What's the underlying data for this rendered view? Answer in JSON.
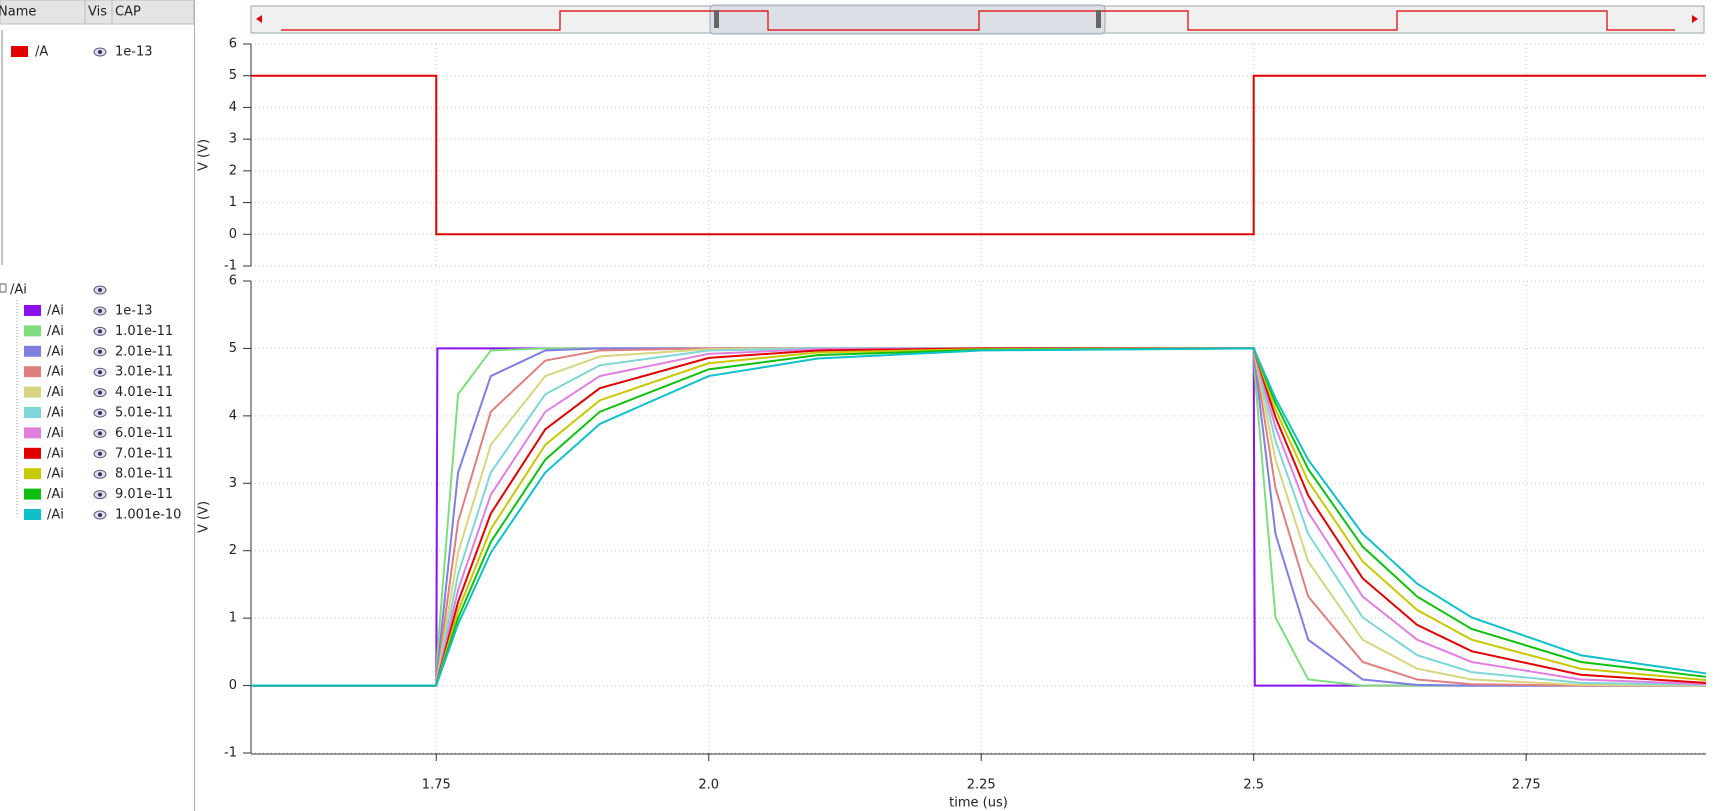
{
  "legend_panel": {
    "headers": [
      "Name",
      "Vis",
      "CAP"
    ]
  },
  "chart_data": [
    {
      "type": "line",
      "ylabel": "V (V)",
      "xlim": [
        1.58,
        2.915
      ],
      "ylim": [
        -1,
        6
      ],
      "yticks": [
        -1,
        0,
        1,
        2,
        3,
        4,
        5,
        6
      ],
      "grid": true,
      "x": [
        1.58,
        1.75,
        1.75,
        2.5,
        2.5,
        2.915
      ],
      "series": [
        {
          "name": "/A",
          "cap": "1e-13",
          "color": "#e00000",
          "values": [
            5,
            5,
            0,
            0,
            5,
            5
          ]
        }
      ]
    },
    {
      "type": "line",
      "group": "/Ai",
      "ylabel": "V (V)",
      "xlabel": "time (us)",
      "xlim": [
        1.58,
        2.915
      ],
      "ylim": [
        -1,
        6
      ],
      "yticks": [
        -1,
        0,
        1,
        2,
        3,
        4,
        5,
        6
      ],
      "grid": true,
      "xticks": [
        1.75,
        {
          "value": 2,
          "label": "2.0"
        },
        2.25,
        2.5,
        2.75
      ],
      "x": [
        1.58,
        1.75,
        1.751,
        1.77,
        1.8,
        1.85,
        1.9,
        2.0,
        2.1,
        2.25,
        2.5,
        2.501,
        2.52,
        2.55,
        2.6,
        2.65,
        2.7,
        2.8,
        2.915
      ],
      "series": [
        {
          "name": "/Ai",
          "cap": "1e-13",
          "color": "#8a10f0",
          "values": [
            0,
            0,
            5,
            5,
            5,
            5,
            5,
            5,
            5,
            5,
            5,
            0,
            0,
            0,
            0,
            0,
            0,
            0,
            0
          ]
        },
        {
          "name": "/Ai",
          "cap": "1.01e-11",
          "color": "#7fdc7f",
          "values": [
            0,
            0,
            0.48,
            4.32,
            4.97,
            5,
            5,
            5,
            5,
            5,
            5,
            4.62,
            1.01,
            0.09,
            0,
            0,
            0,
            0,
            0
          ]
        },
        {
          "name": "/Ai",
          "cap": "2.01e-11",
          "color": "#7f7fdf",
          "values": [
            0,
            0,
            0.24,
            3.16,
            4.59,
            4.97,
            5,
            5,
            5,
            5,
            5,
            4.8,
            2.25,
            0.68,
            0.09,
            0.01,
            0,
            0,
            0
          ]
        },
        {
          "name": "/Ai",
          "cap": "3.01e-11",
          "color": "#df7f7f",
          "values": [
            0,
            0,
            0.16,
            2.43,
            4.06,
            4.82,
            4.97,
            5,
            5,
            5,
            5,
            4.87,
            2.93,
            1.32,
            0.35,
            0.09,
            0.02,
            0,
            0
          ]
        },
        {
          "name": "/Ai",
          "cap": "4.01e-11",
          "color": "#d6d680",
          "values": [
            0,
            0,
            0.12,
            1.97,
            3.57,
            4.59,
            4.88,
            4.99,
            5,
            5,
            5,
            4.9,
            3.35,
            1.84,
            0.68,
            0.25,
            0.09,
            0.01,
            0
          ]
        },
        {
          "name": "/Ai",
          "cap": "5.01e-11",
          "color": "#7fd6d6",
          "values": [
            0,
            0,
            0.1,
            1.65,
            3.16,
            4.32,
            4.75,
            4.97,
            5,
            5,
            5,
            4.92,
            3.63,
            2.25,
            1.01,
            0.45,
            0.2,
            0.04,
            0.01
          ]
        },
        {
          "name": "/Ai",
          "cap": "6.01e-11",
          "color": "#e07fe0",
          "values": [
            0,
            0,
            0.08,
            1.42,
            2.83,
            4.06,
            4.59,
            4.92,
            4.99,
            5,
            5,
            4.93,
            3.83,
            2.57,
            1.32,
            0.68,
            0.35,
            0.09,
            0.02
          ]
        },
        {
          "name": "/Ai",
          "cap": "7.01e-11",
          "color": "#e00000",
          "values": [
            0,
            0,
            0.07,
            1.24,
            2.55,
            3.8,
            4.41,
            4.86,
            4.97,
            5,
            5,
            4.94,
            3.98,
            2.82,
            1.59,
            0.9,
            0.51,
            0.16,
            0.04
          ]
        },
        {
          "name": "/Ai",
          "cap": "8.01e-11",
          "color": "#c8c800",
          "values": [
            0,
            0,
            0.06,
            1.11,
            2.32,
            3.57,
            4.23,
            4.78,
            4.94,
            4.99,
            5,
            4.95,
            4.09,
            3.03,
            1.84,
            1.12,
            0.68,
            0.25,
            0.08
          ]
        },
        {
          "name": "/Ai",
          "cap": "9.01e-11",
          "color": "#10c010",
          "values": [
            0,
            0,
            0.06,
            1,
            2.13,
            3.35,
            4.06,
            4.69,
            4.9,
            4.98,
            5,
            4.96,
            4.19,
            3.21,
            2.06,
            1.32,
            0.84,
            0.35,
            0.13
          ]
        },
        {
          "name": "/Ai",
          "cap": "1.001e-10",
          "color": "#10c0c8",
          "values": [
            0,
            0,
            0.05,
            0.91,
            1.97,
            3.16,
            3.88,
            4.59,
            4.85,
            4.97,
            5,
            4.96,
            4.26,
            3.35,
            2.25,
            1.51,
            1.01,
            0.45,
            0.18
          ]
        }
      ]
    }
  ]
}
